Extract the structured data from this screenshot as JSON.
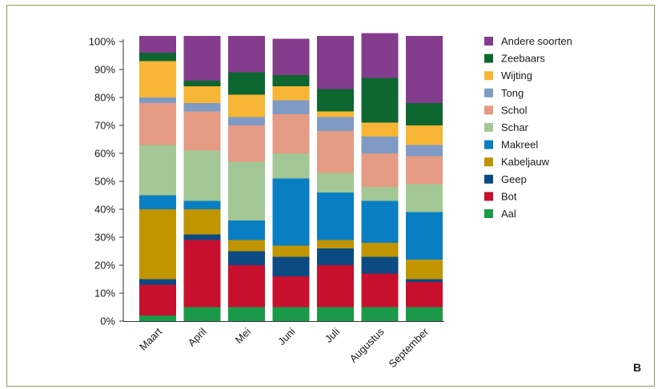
{
  "panel_letter": "B",
  "chart_data": {
    "type": "bar",
    "stacked": true,
    "categories": [
      "Maart",
      "April",
      "Mei",
      "Juni",
      "Juli",
      "Augustus",
      "September"
    ],
    "yticks": [
      "0%",
      "10%",
      "20%",
      "30%",
      "40%",
      "50%",
      "60%",
      "70%",
      "80%",
      "90%",
      "100%"
    ],
    "ylim": [
      0,
      100
    ],
    "legend_position": "right",
    "grid": false,
    "series": [
      {
        "name": "Aal",
        "color": "#1a9a48",
        "values": [
          2,
          5,
          5,
          5,
          5,
          5,
          5
        ]
      },
      {
        "name": "Bot",
        "color": "#c8102e",
        "values": [
          11,
          24,
          15,
          11,
          15,
          12,
          9
        ]
      },
      {
        "name": "Geep",
        "color": "#0b4a82",
        "values": [
          2,
          2,
          5,
          7,
          6,
          6,
          1
        ]
      },
      {
        "name": "Kabeljauw",
        "color": "#c09500",
        "values": [
          25,
          9,
          4,
          4,
          3,
          5,
          7
        ]
      },
      {
        "name": "Makreel",
        "color": "#0a7ec2",
        "values": [
          5,
          3,
          7,
          24,
          17,
          15,
          17
        ]
      },
      {
        "name": "Schar",
        "color": "#a3c795",
        "values": [
          18,
          18,
          21,
          9,
          7,
          5,
          10
        ]
      },
      {
        "name": "Schol",
        "color": "#e59a83",
        "values": [
          15,
          14,
          13,
          14,
          15,
          12,
          10
        ]
      },
      {
        "name": "Tong",
        "color": "#7f9ac4",
        "values": [
          2,
          3,
          3,
          5,
          5,
          6,
          4
        ]
      },
      {
        "name": "Wijting",
        "color": "#f7b535",
        "values": [
          13,
          6,
          8,
          5,
          2,
          5,
          7
        ]
      },
      {
        "name": "Zeebaars",
        "color": "#0e6630",
        "values": [
          3,
          2,
          8,
          4,
          8,
          16,
          8
        ]
      },
      {
        "name": "Andere soorten",
        "color": "#843c8c",
        "values": [
          6,
          16,
          13,
          13,
          19,
          16,
          24
        ]
      }
    ]
  }
}
